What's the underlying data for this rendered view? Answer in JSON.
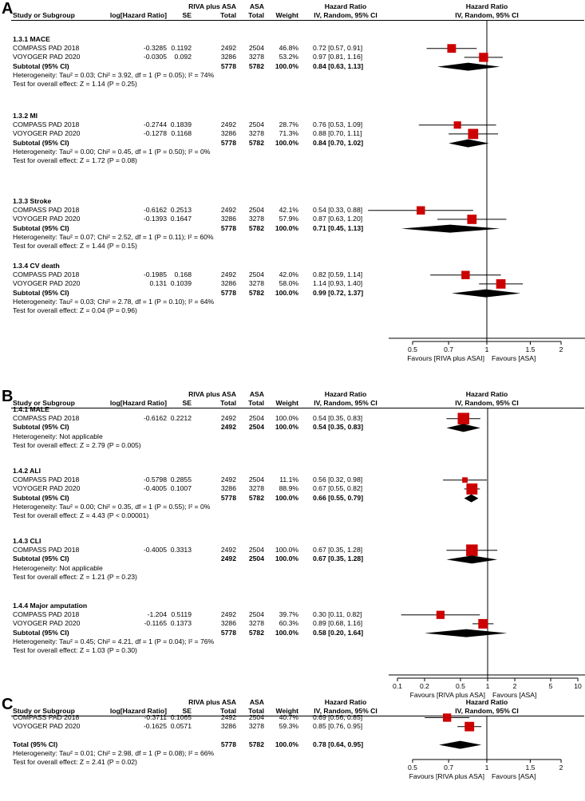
{
  "colors": {
    "box": "#cc0000",
    "line": "#000000",
    "diamond": "#000000"
  },
  "headers": {
    "study": "Study or Subgroup",
    "loghr": "log[Hazard Ratio]",
    "se": "SE",
    "group1": "RIVA plus ASA",
    "group2": "ASA",
    "total": "Total",
    "weight": "Weight",
    "hr": "Hazard Ratio",
    "method": "IV, Random, 95% CI"
  },
  "panels": [
    {
      "label": "A",
      "axis_label_left": "Favours [RIVA plus ASAI]",
      "axis_label_right": "Favours [ASA]",
      "ticks": [
        "0.5",
        "0.7",
        "1",
        "1.5",
        "2"
      ],
      "subgroups": [
        {
          "title": "1.3.1 MACE",
          "studies": [
            {
              "name": "COMPASS PAD 2018",
              "loghr": "-0.3285",
              "se": "0.1192",
              "t1": "2492",
              "t2": "2504",
              "weight": "46.8%",
              "ci": "0.72 [0.57, 0.91]"
            },
            {
              "name": "VOYOGER PAD 2020",
              "loghr": "-0.0305",
              "se": "0.092",
              "t1": "3286",
              "t2": "3278",
              "weight": "53.2%",
              "ci": "0.97 [0.81, 1.16]"
            }
          ],
          "subtotal": {
            "label": "Subtotal (95% CI)",
            "t1": "5778",
            "t2": "5782",
            "weight": "100.0%",
            "ci": "0.84 [0.63, 1.13]"
          },
          "heterogeneity": "Heterogeneity: Tau² = 0.03; Chi² = 3.92, df = 1 (P = 0.05); I² = 74%",
          "overall": "Test for overall effect: Z = 1.14 (P = 0.25)"
        },
        {
          "title": "1.3.2 MI",
          "studies": [
            {
              "name": "COMPASS PAD 2018",
              "loghr": "-0.2744",
              "se": "0.1839",
              "t1": "2492",
              "t2": "2504",
              "weight": "28.7%",
              "ci": "0.76 [0.53, 1.09]"
            },
            {
              "name": "VOYOGER PAD 2020",
              "loghr": "-0.1278",
              "se": "0.1168",
              "t1": "3286",
              "t2": "3278",
              "weight": "71.3%",
              "ci": "0.88 [0.70, 1.11]"
            }
          ],
          "subtotal": {
            "label": "Subtotal (95% CI)",
            "t1": "5778",
            "t2": "5782",
            "weight": "100.0%",
            "ci": "0.84 [0.70, 1.02]"
          },
          "heterogeneity": "Heterogeneity: Tau² = 0.00; Chi² = 0.45, df = 1 (P = 0.50); I² = 0%",
          "overall": "Test for overall effect: Z = 1.72 (P = 0.08)"
        },
        {
          "title": "1.3.3 Stroke",
          "studies": [
            {
              "name": "COMPASS PAD 2018",
              "loghr": "-0.6162",
              "se": "0.2513",
              "t1": "2492",
              "t2": "2504",
              "weight": "42.1%",
              "ci": "0.54 [0.33, 0.88]"
            },
            {
              "name": "VOYOGER PAD 2020",
              "loghr": "-0.1393",
              "se": "0.1647",
              "t1": "3286",
              "t2": "3278",
              "weight": "57.9%",
              "ci": "0.87 [0.63, 1.20]"
            }
          ],
          "subtotal": {
            "label": "Subtotal (95% CI)",
            "t1": "5778",
            "t2": "5782",
            "weight": "100.0%",
            "ci": "0.71 [0.45, 1.13]"
          },
          "heterogeneity": "Heterogeneity: Tau² = 0.07; Chi² = 2.52, df = 1 (P = 0.11); I² = 60%",
          "overall": "Test for overall effect: Z = 1.44 (P = 0.15)"
        },
        {
          "title": "1.3.4 CV death",
          "studies": [
            {
              "name": "COMPASS PAD 2018",
              "loghr": "-0.1985",
              "se": "0.168",
              "t1": "2492",
              "t2": "2504",
              "weight": "42.0%",
              "ci": "0.82 [0.59, 1.14]"
            },
            {
              "name": "VOYOGER PAD 2020",
              "loghr": "0.131",
              "se": "0.1039",
              "t1": "3286",
              "t2": "3278",
              "weight": "58.0%",
              "ci": "1.14 [0.93, 1.40]"
            }
          ],
          "subtotal": {
            "label": "Subtotal (95% CI)",
            "t1": "5778",
            "t2": "5782",
            "weight": "100.0%",
            "ci": "0.99 [0.72, 1.37]"
          },
          "heterogeneity": "Heterogeneity: Tau² = 0.03; Chi² = 2.78, df = 1 (P = 0.10); I² = 64%",
          "overall": "Test for overall effect: Z = 0.04 (P = 0.96)"
        }
      ]
    },
    {
      "label": "B",
      "axis_label_left": "Favours [RIVA plus ASA]",
      "axis_label_right": "Favours [ASA]",
      "ticks": [
        "0.1",
        "0.2",
        "0.5",
        "1",
        "2",
        "5",
        "10"
      ],
      "subgroups": [
        {
          "title": "1.4.1 MALE",
          "studies": [
            {
              "name": "COMPASS PAD 2018",
              "loghr": "-0.6162",
              "se": "0.2212",
              "t1": "2492",
              "t2": "2504",
              "weight": "100.0%",
              "ci": "0.54 [0.35, 0.83]"
            }
          ],
          "subtotal": {
            "label": "Subtotal (95% CI)",
            "t1": "2492",
            "t2": "2504",
            "weight": "100.0%",
            "ci": "0.54 [0.35, 0.83]"
          },
          "heterogeneity": "Heterogeneity: Not applicable",
          "overall": "Test for overall effect: Z = 2.79 (P = 0.005)"
        },
        {
          "title": "1.4.2 ALI",
          "studies": [
            {
              "name": "COMPASS PAD 2018",
              "loghr": "-0.5798",
              "se": "0.2855",
              "t1": "2492",
              "t2": "2504",
              "weight": "11.1%",
              "ci": "0.56 [0.32, 0.98]"
            },
            {
              "name": "VOYOGER PAD 2020",
              "loghr": "-0.4005",
              "se": "0.1007",
              "t1": "3286",
              "t2": "3278",
              "weight": "88.9%",
              "ci": "0.67 [0.55, 0.82]"
            }
          ],
          "subtotal": {
            "label": "Subtotal (95% CI)",
            "t1": "5778",
            "t2": "5782",
            "weight": "100.0%",
            "ci": "0.66 [0.55, 0.79]"
          },
          "heterogeneity": "Heterogeneity: Tau² = 0.00; Chi² = 0.35, df = 1 (P = 0.55); I² = 0%",
          "overall": "Test for overall effect: Z = 4.43 (P < 0.00001)"
        },
        {
          "title": "1.4.3 CLI",
          "studies": [
            {
              "name": "COMPASS PAD 2018",
              "loghr": "-0.4005",
              "se": "0.3313",
              "t1": "2492",
              "t2": "2504",
              "weight": "100.0%",
              "ci": "0.67 [0.35, 1.28]"
            }
          ],
          "subtotal": {
            "label": "Subtotal (95% CI)",
            "t1": "2492",
            "t2": "2504",
            "weight": "100.0%",
            "ci": "0.67 [0.35, 1.28]"
          },
          "heterogeneity": "Heterogeneity: Not applicable",
          "overall": "Test for overall effect: Z = 1.21 (P = 0.23)"
        },
        {
          "title": "1.4.4 Major amputation",
          "studies": [
            {
              "name": "COMPASS PAD 2018",
              "loghr": "-1.204",
              "se": "0.5119",
              "t1": "2492",
              "t2": "2504",
              "weight": "39.7%",
              "ci": "0.30 [0.11, 0.82]"
            },
            {
              "name": "VOYOGER PAD 2020",
              "loghr": "-0.1165",
              "se": "0.1373",
              "t1": "3286",
              "t2": "3278",
              "weight": "60.3%",
              "ci": "0.89 [0.68, 1.16]"
            }
          ],
          "subtotal": {
            "label": "Subtotal (95% CI)",
            "t1": "5778",
            "t2": "5782",
            "weight": "100.0%",
            "ci": "0.58 [0.20, 1.64]"
          },
          "heterogeneity": "Heterogeneity: Tau² = 0.45; Chi² = 4.21, df = 1 (P = 0.04); I² = 76%",
          "overall": "Test for overall effect: Z = 1.03 (P = 0.30)"
        }
      ]
    },
    {
      "label": "C",
      "axis_label_left": "Favours [RIVA plus ASA]",
      "axis_label_right": "Favours [ASA]",
      "ticks": [
        "0.5",
        "0.7",
        "1",
        "1.5",
        "2"
      ],
      "subgroups": [
        {
          "title": "",
          "studies": [
            {
              "name": "COMPASS PAD 2018",
              "loghr": "-0.3711",
              "se": "0.1065",
              "t1": "2492",
              "t2": "2504",
              "weight": "40.7%",
              "ci": "0.69 [0.56, 0.85]"
            },
            {
              "name": "VOYOGER PAD 2020",
              "loghr": "-0.1625",
              "se": "0.0571",
              "t1": "3286",
              "t2": "3278",
              "weight": "59.3%",
              "ci": "0.85 [0.76, 0.95]"
            }
          ],
          "subtotal": {
            "label": "Total (95% CI)",
            "t1": "5778",
            "t2": "5782",
            "weight": "100.0%",
            "ci": "0.78 [0.64, 0.95]"
          },
          "heterogeneity": "Heterogeneity: Tau² = 0.01; Chi² = 2.98, df = 1 (P = 0.08); I² = 66%",
          "overall": "Test for overall effect: Z = 2.41 (P = 0.02)"
        }
      ]
    }
  ],
  "chart_data": [
    {
      "type": "forest",
      "title": "A",
      "xscale": "log",
      "xlim": [
        0.4,
        2.5
      ],
      "ticks": [
        0.5,
        0.7,
        1,
        1.5,
        2
      ],
      "rows": [
        {
          "sub": 0,
          "kind": "study",
          "hr": 0.72,
          "lo": 0.57,
          "hi": 0.91,
          "w": 46.8
        },
        {
          "sub": 0,
          "kind": "study",
          "hr": 0.97,
          "lo": 0.81,
          "hi": 1.16,
          "w": 53.2
        },
        {
          "sub": 0,
          "kind": "diamond",
          "hr": 0.84,
          "lo": 0.63,
          "hi": 1.13
        },
        {
          "sub": 1,
          "kind": "study",
          "hr": 0.76,
          "lo": 0.53,
          "hi": 1.09,
          "w": 28.7
        },
        {
          "sub": 1,
          "kind": "study",
          "hr": 0.88,
          "lo": 0.7,
          "hi": 1.11,
          "w": 71.3
        },
        {
          "sub": 1,
          "kind": "diamond",
          "hr": 0.84,
          "lo": 0.7,
          "hi": 1.02
        },
        {
          "sub": 2,
          "kind": "study",
          "hr": 0.54,
          "lo": 0.33,
          "hi": 0.88,
          "w": 42.1
        },
        {
          "sub": 2,
          "kind": "study",
          "hr": 0.87,
          "lo": 0.63,
          "hi": 1.2,
          "w": 57.9
        },
        {
          "sub": 2,
          "kind": "diamond",
          "hr": 0.71,
          "lo": 0.45,
          "hi": 1.13
        },
        {
          "sub": 3,
          "kind": "study",
          "hr": 0.82,
          "lo": 0.59,
          "hi": 1.14,
          "w": 42.0
        },
        {
          "sub": 3,
          "kind": "study",
          "hr": 1.14,
          "lo": 0.93,
          "hi": 1.4,
          "w": 58.0
        },
        {
          "sub": 3,
          "kind": "diamond",
          "hr": 0.99,
          "lo": 0.72,
          "hi": 1.37
        }
      ]
    },
    {
      "type": "forest",
      "title": "B",
      "xscale": "log",
      "xlim": [
        0.1,
        10
      ],
      "ticks": [
        0.1,
        0.2,
        0.5,
        1,
        2,
        5,
        10
      ],
      "rows": [
        {
          "sub": 0,
          "kind": "study",
          "hr": 0.54,
          "lo": 0.35,
          "hi": 0.83,
          "w": 100.0
        },
        {
          "sub": 0,
          "kind": "diamond",
          "hr": 0.54,
          "lo": 0.35,
          "hi": 0.83
        },
        {
          "sub": 1,
          "kind": "study",
          "hr": 0.56,
          "lo": 0.32,
          "hi": 0.98,
          "w": 11.1
        },
        {
          "sub": 1,
          "kind": "study",
          "hr": 0.67,
          "lo": 0.55,
          "hi": 0.82,
          "w": 88.9
        },
        {
          "sub": 1,
          "kind": "diamond",
          "hr": 0.66,
          "lo": 0.55,
          "hi": 0.79
        },
        {
          "sub": 2,
          "kind": "study",
          "hr": 0.67,
          "lo": 0.35,
          "hi": 1.28,
          "w": 100.0
        },
        {
          "sub": 2,
          "kind": "diamond",
          "hr": 0.67,
          "lo": 0.35,
          "hi": 1.28
        },
        {
          "sub": 3,
          "kind": "study",
          "hr": 0.3,
          "lo": 0.11,
          "hi": 0.82,
          "w": 39.7
        },
        {
          "sub": 3,
          "kind": "study",
          "hr": 0.89,
          "lo": 0.68,
          "hi": 1.16,
          "w": 60.3
        },
        {
          "sub": 3,
          "kind": "diamond",
          "hr": 0.58,
          "lo": 0.2,
          "hi": 1.64
        }
      ]
    },
    {
      "type": "forest",
      "title": "C",
      "xscale": "log",
      "xlim": [
        0.4,
        2.5
      ],
      "ticks": [
        0.5,
        0.7,
        1,
        1.5,
        2
      ],
      "rows": [
        {
          "sub": 0,
          "kind": "study",
          "hr": 0.69,
          "lo": 0.56,
          "hi": 0.85,
          "w": 40.7
        },
        {
          "sub": 0,
          "kind": "study",
          "hr": 0.85,
          "lo": 0.76,
          "hi": 0.95,
          "w": 59.3
        },
        {
          "sub": 0,
          "kind": "diamond",
          "hr": 0.78,
          "lo": 0.64,
          "hi": 0.95
        }
      ]
    }
  ]
}
